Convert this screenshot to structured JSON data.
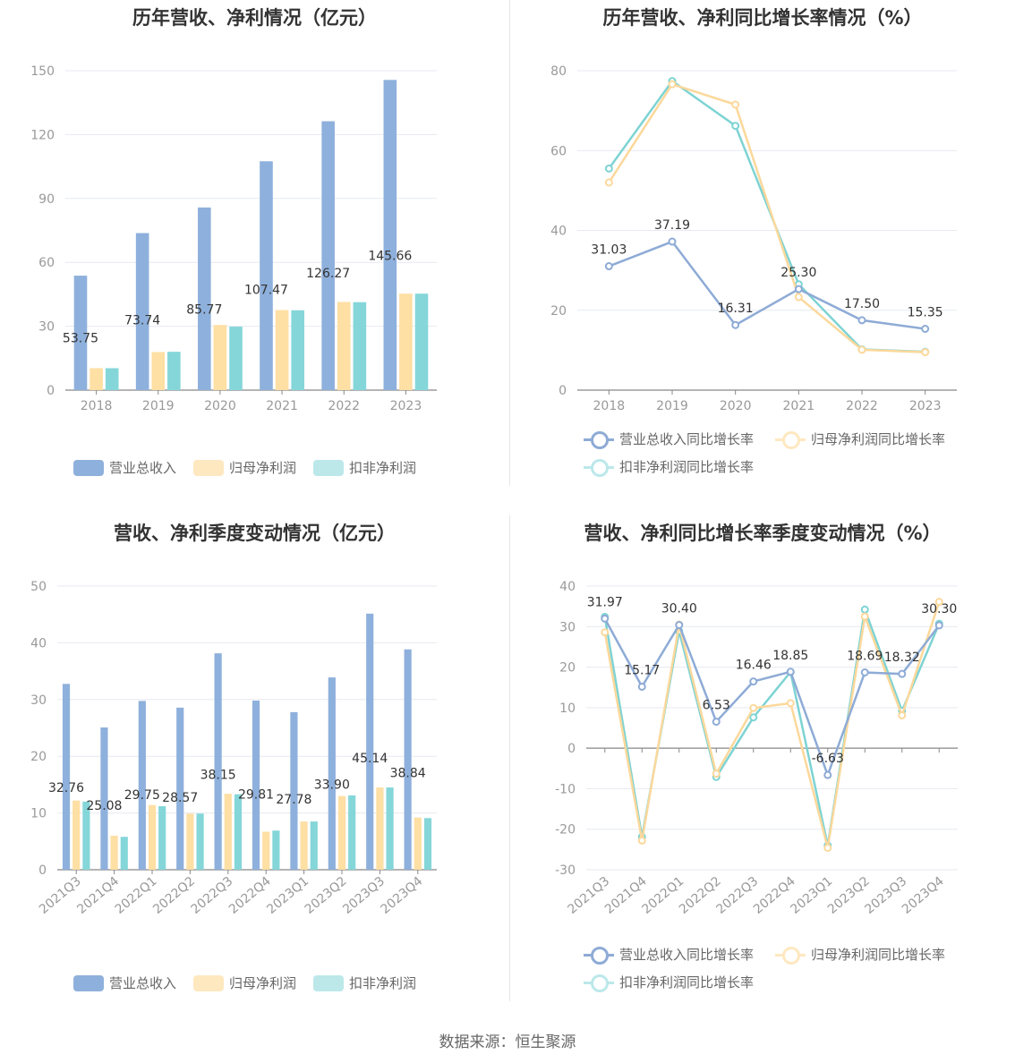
{
  "footer": "数据来源：恒生聚源",
  "colors": {
    "revenue": "#8eb0dc",
    "net_profit": "#fedfa4",
    "deducted_profit": "#85d6d9",
    "revenue_line": "#8eabd6",
    "net_profit_line": "#fcd89b",
    "deducted_line": "#7ed3d3"
  },
  "chart_data": [
    {
      "id": "annual-amounts",
      "type": "bar",
      "title": "历年营收、净利情况（亿元）",
      "categories": [
        "2018",
        "2019",
        "2020",
        "2021",
        "2022",
        "2023"
      ],
      "ylim": [
        0,
        150
      ],
      "yticks": [
        0,
        30,
        60,
        90,
        120,
        150
      ],
      "series": [
        {
          "name": "营业总收入",
          "values": [
            53.75,
            73.74,
            85.77,
            107.47,
            126.27,
            145.66
          ],
          "labels": [
            "53.75",
            "73.74",
            "85.77",
            "107.47",
            "126.27",
            "145.66"
          ]
        },
        {
          "name": "归母净利润",
          "values": [
            10.3,
            17.9,
            30.6,
            37.6,
            41.4,
            45.3
          ]
        },
        {
          "name": "扣非净利润",
          "values": [
            10.3,
            18.0,
            29.8,
            37.5,
            41.3,
            45.3
          ]
        }
      ],
      "legend": "bottom-center",
      "grid": true
    },
    {
      "id": "annual-growth",
      "type": "line",
      "title": "历年营收、净利同比增长率情况（%）",
      "categories": [
        "2018",
        "2019",
        "2020",
        "2021",
        "2022",
        "2023"
      ],
      "ylim": [
        0,
        80
      ],
      "yticks": [
        0,
        20,
        40,
        60,
        80
      ],
      "series": [
        {
          "name": "营业总收入同比增长率",
          "values": [
            31.03,
            37.19,
            16.31,
            25.3,
            17.5,
            15.35
          ],
          "labels": [
            "31.03",
            "37.19",
            "16.31",
            "25.30",
            "17.50",
            "15.35"
          ]
        },
        {
          "name": "归母净利润同比增长率",
          "values": [
            52.0,
            76.6,
            71.5,
            23.3,
            10.1,
            9.5
          ]
        },
        {
          "name": "扣非净利润同比增长率",
          "values": [
            55.5,
            77.4,
            66.2,
            26.5,
            10.2,
            9.6
          ]
        }
      ],
      "legend": "bottom-center",
      "grid": true
    },
    {
      "id": "quarterly-amounts",
      "type": "bar",
      "title": "营收、净利季度变动情况（亿元）",
      "categories": [
        "2021Q3",
        "2021Q4",
        "2022Q1",
        "2022Q2",
        "2022Q3",
        "2022Q4",
        "2023Q1",
        "2023Q2",
        "2023Q3",
        "2023Q4"
      ],
      "ylim": [
        0,
        50
      ],
      "yticks": [
        0,
        10,
        20,
        30,
        40,
        50
      ],
      "series": [
        {
          "name": "营业总收入",
          "values": [
            32.76,
            25.08,
            29.75,
            28.57,
            38.15,
            29.81,
            27.78,
            33.9,
            45.14,
            38.84
          ],
          "labels": [
            "32.76",
            "25.08",
            "29.75",
            "28.57",
            "38.15",
            "29.81",
            "27.78",
            "33.90",
            "45.14",
            "38.84"
          ]
        },
        {
          "name": "归母净利润",
          "values": [
            12.2,
            6.0,
            11.4,
            9.9,
            13.4,
            6.7,
            8.5,
            13.0,
            14.5,
            9.2
          ]
        },
        {
          "name": "扣非净利润",
          "values": [
            12.0,
            5.8,
            11.2,
            9.9,
            13.3,
            6.9,
            8.5,
            13.1,
            14.5,
            9.1
          ]
        }
      ],
      "legend": "bottom-center",
      "grid": true
    },
    {
      "id": "quarterly-growth",
      "type": "line",
      "title": "营收、净利同比增长率季度变动情况（%）",
      "categories": [
        "2021Q3",
        "2021Q4",
        "2022Q1",
        "2022Q2",
        "2022Q3",
        "2022Q4",
        "2023Q1",
        "2023Q2",
        "2023Q3",
        "2023Q4"
      ],
      "ylim": [
        -30,
        40
      ],
      "yticks": [
        -30,
        -20,
        -10,
        0,
        10,
        20,
        30,
        40
      ],
      "series": [
        {
          "name": "营业总收入同比增长率",
          "values": [
            31.97,
            15.17,
            30.4,
            6.53,
            16.46,
            18.85,
            -6.63,
            18.69,
            18.32,
            30.3
          ],
          "labels": [
            "31.97",
            "15.17",
            "30.40",
            "6.53",
            "16.46",
            "18.85",
            "-6.63",
            "18.69",
            "18.32",
            "30.30"
          ]
        },
        {
          "name": "归母净利润同比增长率",
          "values": [
            28.6,
            -22.8,
            30.5,
            -6.3,
            9.9,
            11.1,
            -24.6,
            32.5,
            8.1,
            36.1
          ]
        },
        {
          "name": "扣非净利润同比增长率",
          "values": [
            32.4,
            -21.9,
            28.9,
            -7.1,
            7.6,
            18.8,
            -24.0,
            34.2,
            9.2,
            30.7
          ]
        }
      ],
      "legend": "bottom-center",
      "grid": true
    }
  ]
}
